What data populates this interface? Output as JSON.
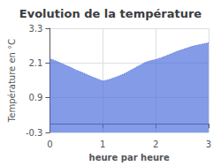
{
  "chart_data": {
    "type": "area",
    "title": "Evolution de la température",
    "xlabel": "heure par heure",
    "ylabel": "Température en °C",
    "x": [
      0,
      0.1,
      0.2,
      0.3,
      0.4,
      0.5,
      0.6,
      0.7,
      0.8,
      0.9,
      1.0,
      1.1,
      1.2,
      1.3,
      1.4,
      1.5,
      1.6,
      1.7,
      1.8,
      1.9,
      2.0,
      2.1,
      2.2,
      2.3,
      2.4,
      2.5,
      2.6,
      2.7,
      2.8,
      2.9,
      3.0
    ],
    "values": [
      2.25,
      2.18,
      2.1,
      2.02,
      1.94,
      1.85,
      1.78,
      1.7,
      1.62,
      1.55,
      1.48,
      1.52,
      1.58,
      1.65,
      1.72,
      1.82,
      1.92,
      2.02,
      2.12,
      2.18,
      2.22,
      2.28,
      2.35,
      2.42,
      2.5,
      2.56,
      2.62,
      2.68,
      2.72,
      2.76,
      2.8
    ],
    "xlim": [
      0,
      3
    ],
    "ylim": [
      -0.3,
      3.3
    ],
    "xticks": [
      0,
      1,
      2,
      3
    ],
    "yticks": [
      -0.3,
      0.9,
      2.1,
      3.3
    ],
    "line_style": "dotted",
    "grid": true
  }
}
